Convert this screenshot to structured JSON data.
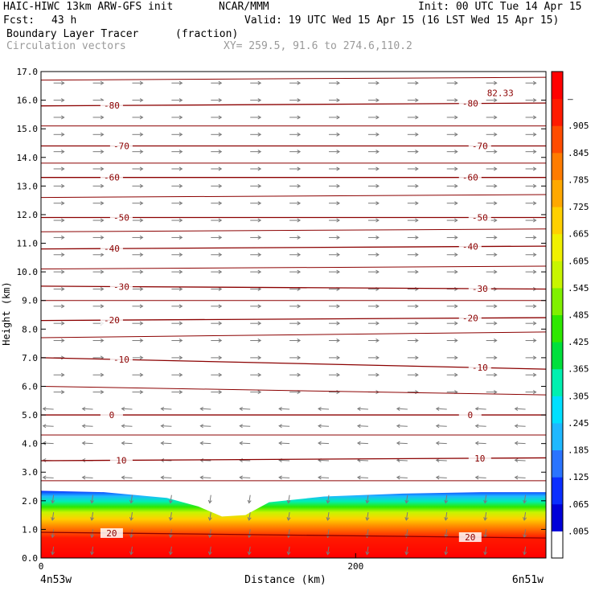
{
  "header": {
    "model": "HAIC-HIWC 13km ARW-GFS init",
    "org": "NCAR/MMM",
    "init": "Init: 00 UTC Tue 14 Apr 15",
    "fcst_label": "Fcst:",
    "fcst_value": "43 h",
    "valid": "Valid: 19 UTC Wed 15 Apr 15 (16 LST Wed 15 Apr 15)",
    "field": "Boundary Layer Tracer",
    "units": "(fraction)",
    "vectors": "Circulation vectors",
    "xy": "XY= 259.5, 91.6 to 274.6,110.2"
  },
  "chart_data": {
    "type": "heatmap",
    "xlabel": "Distance (km)",
    "ylabel": "Height (km)",
    "xlim": [
      0,
      321
    ],
    "ylim": [
      0,
      17
    ],
    "x_ticks": [
      "0",
      "200"
    ],
    "x_tick_values": [
      0,
      200
    ],
    "x_left_label": "4n53w",
    "x_right_label": "6n51w",
    "y_ticks": [
      "0.0",
      "1.0",
      "2.0",
      "3.0",
      "4.0",
      "5.0",
      "6.0",
      "7.0",
      "8.0",
      "9.0",
      "10.0",
      "11.0",
      "12.0",
      "13.0",
      "14.0",
      "15.0",
      "16.0",
      "17.0"
    ],
    "colorbar": {
      "labels": [
        ".005",
        ".065",
        ".125",
        ".185",
        ".245",
        ".305",
        ".365",
        ".425",
        ".485",
        ".545",
        ".605",
        ".665",
        ".725",
        ".785",
        ".845",
        ".905",
        "–"
      ],
      "colors": [
        "#ffffff",
        "#0000d8",
        "#0a2eff",
        "#2a74ff",
        "#1fb8ff",
        "#00e0ff",
        "#00f0b0",
        "#00e03c",
        "#2ee800",
        "#80f000",
        "#c8f500",
        "#f0f000",
        "#ffd000",
        "#ffa800",
        "#ff7c00",
        "#ff4c00",
        "#ff1a00",
        "#ff0000"
      ]
    },
    "contours": [
      {
        "label": "-80",
        "y_left": 15.8,
        "y_right": 15.9
      },
      {
        "label": "-70",
        "y_left": 14.4,
        "y_right": 14.4
      },
      {
        "label": "-60",
        "y_left": 13.3,
        "y_right": 13.3
      },
      {
        "label": "-50",
        "y_left": 11.9,
        "y_right": 11.9
      },
      {
        "label": "-40",
        "y_left": 10.8,
        "y_right": 10.9
      },
      {
        "label": "-30",
        "y_left": 9.5,
        "y_right": 9.4
      },
      {
        "label": "-20",
        "y_left": 8.3,
        "y_right": 8.4
      },
      {
        "label": "-10",
        "y_left": 7.0,
        "y_right": 6.6
      },
      {
        "label": "0",
        "y_left": 5.0,
        "y_right": 5.0
      },
      {
        "label": "10",
        "y_left": 3.4,
        "y_right": 3.5
      },
      {
        "label": "20",
        "y_left": 0.9,
        "y_right": 0.7
      }
    ],
    "extra_contours_unlabeled": [
      {
        "y_left": 16.7,
        "y_right": 16.8
      },
      {
        "y_left": 15.1,
        "y_right": 15.1
      },
      {
        "y_left": 13.8,
        "y_right": 13.8
      },
      {
        "y_left": 12.6,
        "y_right": 12.7
      },
      {
        "y_left": 11.4,
        "y_right": 11.5
      },
      {
        "y_left": 10.1,
        "y_right": 10.2
      },
      {
        "y_left": 9.0,
        "y_right": 9.0
      },
      {
        "y_left": 7.7,
        "y_right": 7.9
      },
      {
        "y_left": 6.0,
        "y_right": 5.7
      },
      {
        "y_left": 4.3,
        "y_right": 4.3
      },
      {
        "y_left": 2.7,
        "y_right": 2.7
      }
    ],
    "max_label": "82.33",
    "pbl_top": [
      {
        "x": 0,
        "z": 2.35
      },
      {
        "x": 40,
        "z": 2.3
      },
      {
        "x": 80,
        "z": 2.1
      },
      {
        "x": 100,
        "z": 1.8
      },
      {
        "x": 115,
        "z": 1.45
      },
      {
        "x": 130,
        "z": 1.5
      },
      {
        "x": 145,
        "z": 1.95
      },
      {
        "x": 180,
        "z": 2.15
      },
      {
        "x": 230,
        "z": 2.25
      },
      {
        "x": 280,
        "z": 2.3
      },
      {
        "x": 321,
        "z": 2.3
      }
    ]
  }
}
